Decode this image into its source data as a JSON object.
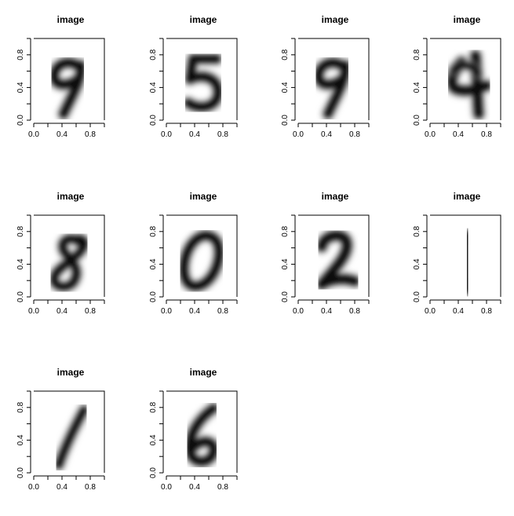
{
  "chart_data": {
    "type": "heatmap",
    "colormap": "grayscale",
    "panels": [
      {
        "title": "image",
        "digit": "9"
      },
      {
        "title": "image",
        "digit": "5"
      },
      {
        "title": "image",
        "digit": "9"
      },
      {
        "title": "image",
        "digit": "4"
      },
      {
        "title": "image",
        "digit": "8"
      },
      {
        "title": "image",
        "digit": "0"
      },
      {
        "title": "image",
        "digit": "2"
      },
      {
        "title": "image",
        "digit": "1"
      },
      {
        "title": "image",
        "digit": "1"
      },
      {
        "title": "image",
        "digit": "6"
      }
    ],
    "xlim": [
      0.0,
      1.0
    ],
    "ylim": [
      0.0,
      1.0
    ],
    "x_tick_labels": [
      "0.0",
      "0.4",
      "0.8"
    ],
    "y_tick_labels": [
      "0.0",
      "0.4",
      "0.8"
    ],
    "xlabel": "",
    "ylabel": "",
    "grid": false
  }
}
